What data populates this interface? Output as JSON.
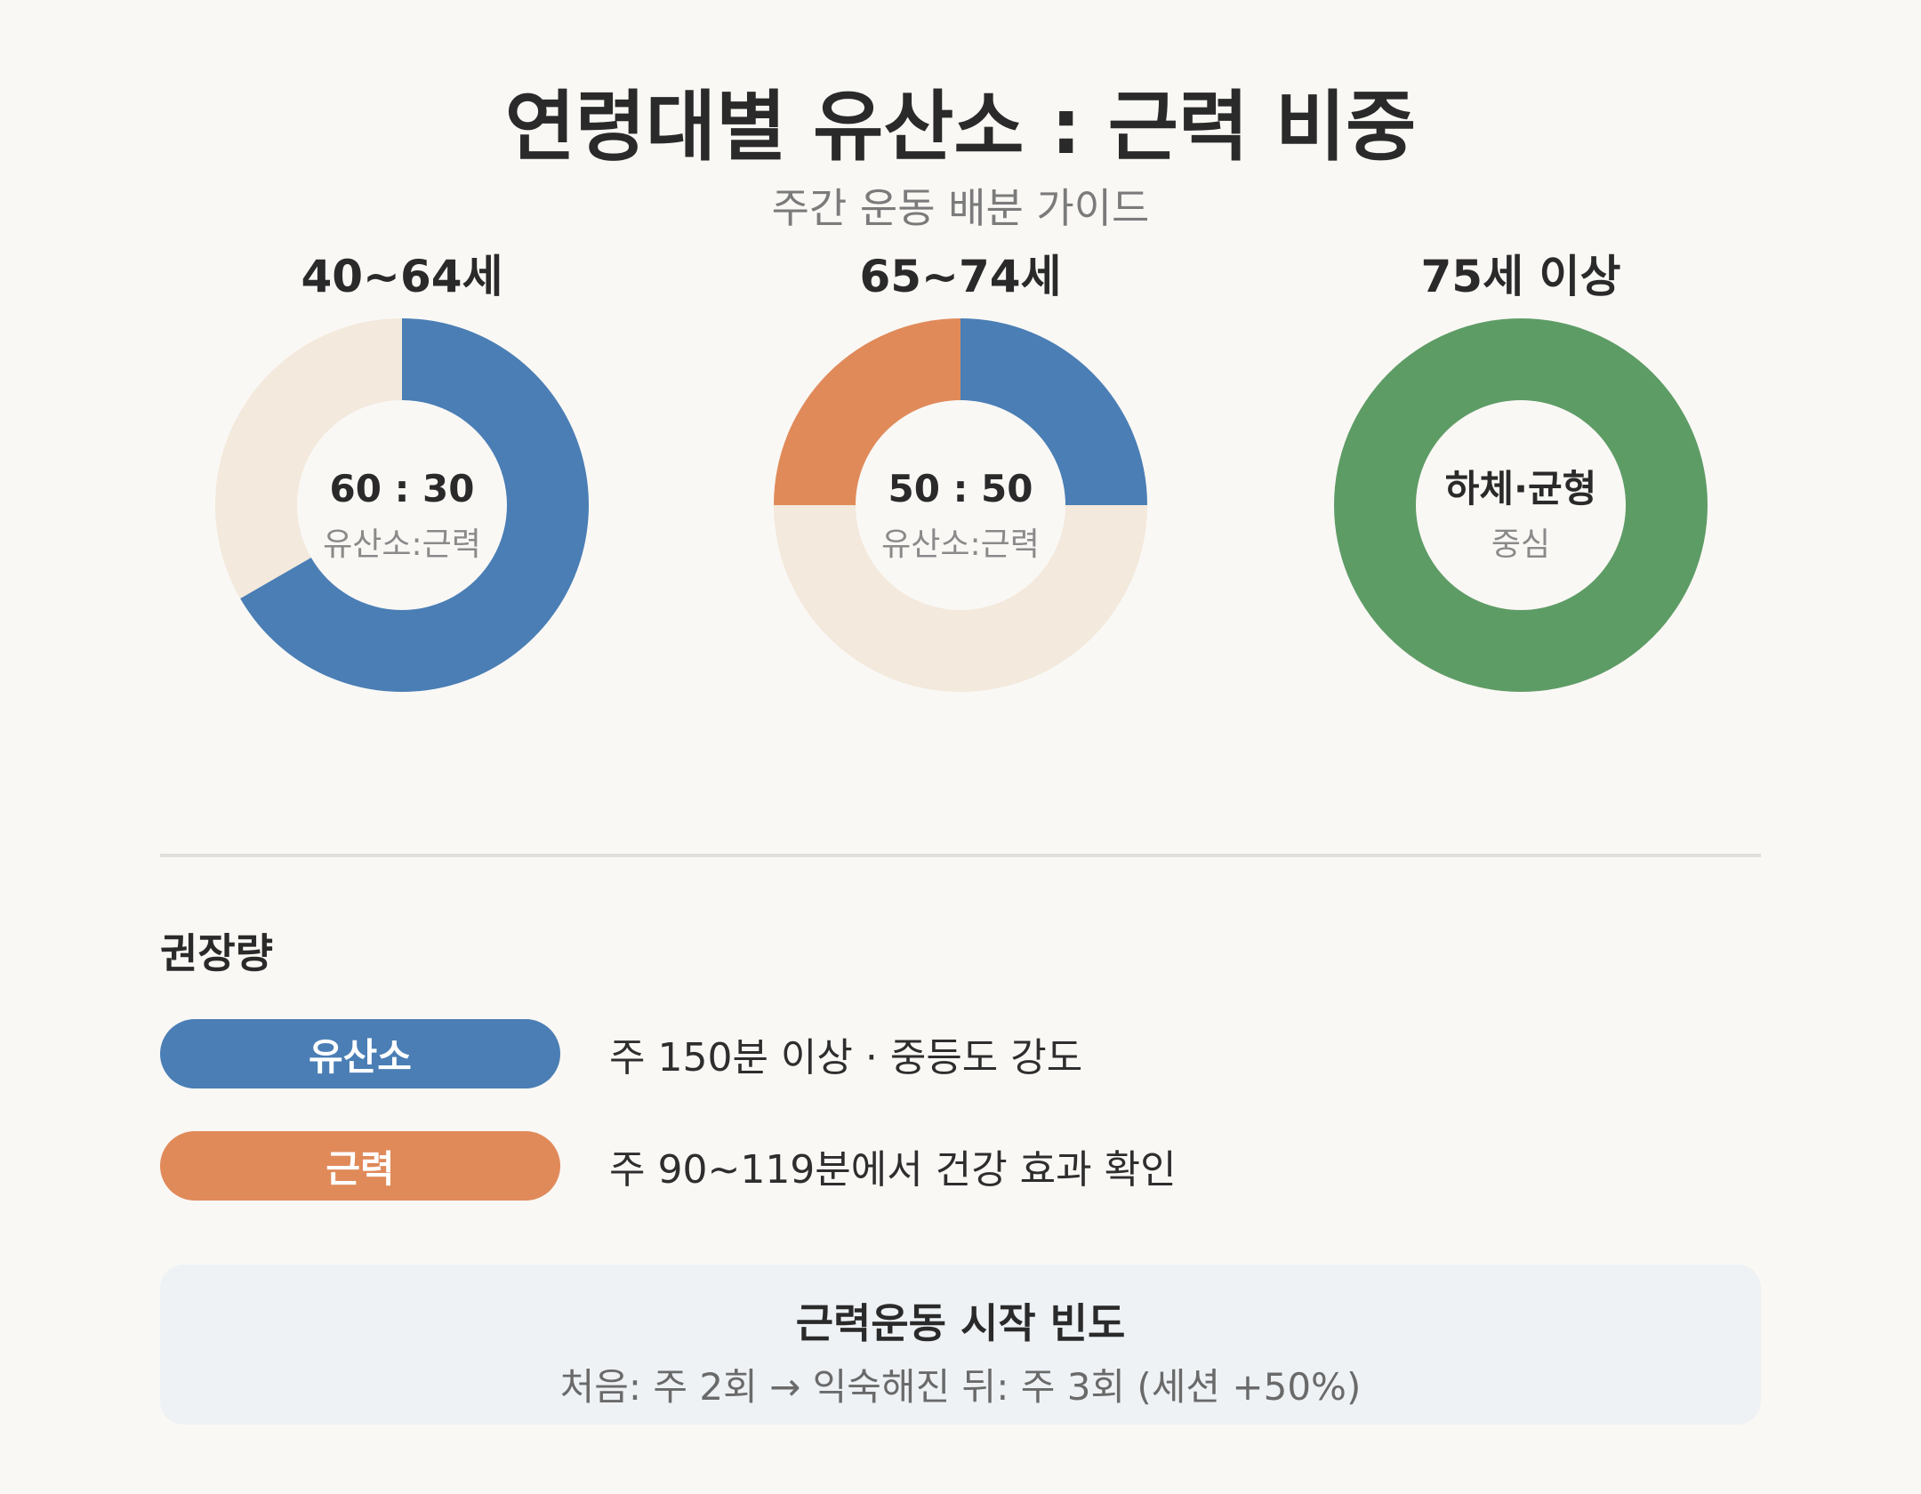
{
  "header": {
    "title": "연령대별 유산소 : 근력 비중",
    "subtitle": "주간 운동 배분 가이드"
  },
  "colors": {
    "cardio": "#4a7eb5",
    "strength": "#e08a5a",
    "balance": "#5e9c66",
    "empty": "#f3e9dc",
    "background": "#faf8f5"
  },
  "chart_data": [
    {
      "type": "pie",
      "group": "40~64세",
      "center_main": "60 : 30",
      "center_sub": "유산소:근력",
      "slices": [
        {
          "label": "유산소",
          "value": 60,
          "color": "#4a7eb5"
        },
        {
          "label": "근력",
          "value": 30,
          "color": "#f3e9dc"
        }
      ]
    },
    {
      "type": "pie",
      "group": "65~74세",
      "center_main": "50 : 50",
      "center_sub": "유산소:근력",
      "slices": [
        {
          "label": "유산소",
          "value": 25,
          "color": "#4a7eb5"
        },
        {
          "label": "",
          "value": 50,
          "color": "#f3e9dc"
        },
        {
          "label": "근력",
          "value": 25,
          "color": "#e08a5a"
        }
      ]
    },
    {
      "type": "pie",
      "group": "75세 이상",
      "center_main": "하체·균형",
      "center_sub": "중심",
      "slices": [
        {
          "label": "하체·균형",
          "value": 100,
          "color": "#5e9c66"
        }
      ]
    }
  ],
  "recommendations": {
    "heading": "권장량",
    "items": [
      {
        "label": "유산소",
        "text": "주 150분 이상 · 중등도 강도",
        "color": "#4a7eb5"
      },
      {
        "label": "근력",
        "text": "주 90~119분에서 건강 효과 확인",
        "color": "#e08a5a"
      }
    ]
  },
  "frequency": {
    "title": "근력운동 시작 빈도",
    "text": "처음: 주 2회 → 익숙해진 뒤: 주 3회 (세션 +50%)"
  }
}
